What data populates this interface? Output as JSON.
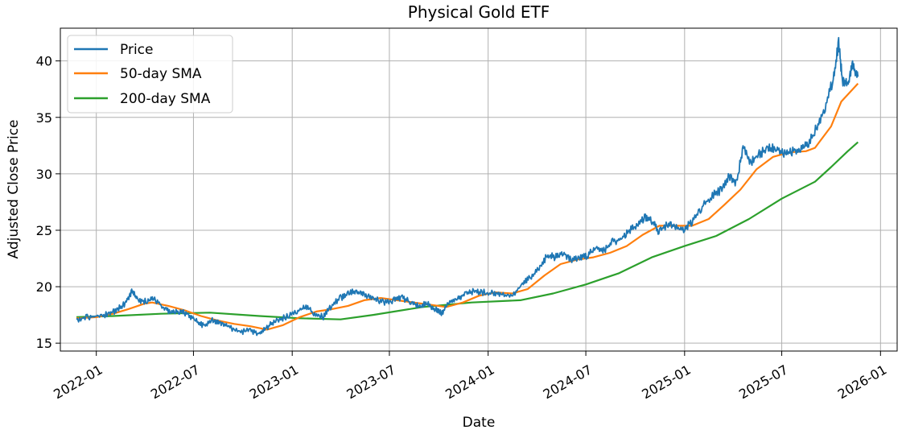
{
  "chart_data": {
    "type": "line",
    "title": "Physical Gold ETF",
    "xlabel": "Date",
    "ylabel": "Adjusted Close Price",
    "x_ticks": [
      "2022-01",
      "2022-07",
      "2023-01",
      "2023-07",
      "2024-01",
      "2024-07",
      "2025-01",
      "2025-07",
      "2026-01"
    ],
    "y_ticks": [
      15,
      20,
      25,
      30,
      35,
      40
    ],
    "xlim": [
      "2021-10-26",
      "2026-02-01"
    ],
    "ylim": [
      14.3,
      42.9
    ],
    "grid": true,
    "legend_position": "top-left",
    "series": [
      {
        "name": "Price",
        "color": "#1f77b4",
        "points": [
          [
            "2021-11-25",
            17.1
          ],
          [
            "2021-12-15",
            17.3
          ],
          [
            "2022-01-05",
            17.4
          ],
          [
            "2022-01-25",
            17.6
          ],
          [
            "2022-02-10",
            18.0
          ],
          [
            "2022-02-25",
            18.6
          ],
          [
            "2022-03-08",
            19.6
          ],
          [
            "2022-03-20",
            18.8
          ],
          [
            "2022-04-05",
            18.7
          ],
          [
            "2022-04-18",
            19.0
          ],
          [
            "2022-05-05",
            18.2
          ],
          [
            "2022-05-20",
            17.7
          ],
          [
            "2022-06-05",
            17.8
          ],
          [
            "2022-06-20",
            17.6
          ],
          [
            "2022-07-05",
            17.0
          ],
          [
            "2022-07-20",
            16.5
          ],
          [
            "2022-08-05",
            17.0
          ],
          [
            "2022-08-20",
            16.8
          ],
          [
            "2022-09-05",
            16.4
          ],
          [
            "2022-09-25",
            16.0
          ],
          [
            "2022-10-15",
            16.1
          ],
          [
            "2022-11-01",
            15.8
          ],
          [
            "2022-11-15",
            16.4
          ],
          [
            "2022-12-01",
            17.0
          ],
          [
            "2022-12-20",
            17.3
          ],
          [
            "2023-01-10",
            17.8
          ],
          [
            "2023-01-25",
            18.2
          ],
          [
            "2023-02-10",
            17.7
          ],
          [
            "2023-02-28",
            17.3
          ],
          [
            "2023-03-15",
            18.3
          ],
          [
            "2023-04-01",
            19.0
          ],
          [
            "2023-04-15",
            19.4
          ],
          [
            "2023-05-01",
            19.6
          ],
          [
            "2023-05-15",
            19.3
          ],
          [
            "2023-06-01",
            19.0
          ],
          [
            "2023-06-20",
            18.6
          ],
          [
            "2023-07-10",
            18.8
          ],
          [
            "2023-07-25",
            19.0
          ],
          [
            "2023-08-10",
            18.6
          ],
          [
            "2023-08-25",
            18.3
          ],
          [
            "2023-09-10",
            18.5
          ],
          [
            "2023-09-25",
            18.0
          ],
          [
            "2023-10-06",
            17.6
          ],
          [
            "2023-10-20",
            18.7
          ],
          [
            "2023-11-05",
            19.0
          ],
          [
            "2023-11-20",
            19.3
          ],
          [
            "2023-12-05",
            19.6
          ],
          [
            "2023-12-20",
            19.5
          ],
          [
            "2024-01-10",
            19.4
          ],
          [
            "2024-01-25",
            19.3
          ],
          [
            "2024-02-14",
            19.1
          ],
          [
            "2024-03-05",
            20.3
          ],
          [
            "2024-03-20",
            20.8
          ],
          [
            "2024-04-05",
            21.6
          ],
          [
            "2024-04-20",
            22.8
          ],
          [
            "2024-05-05",
            22.6
          ],
          [
            "2024-05-20",
            23.0
          ],
          [
            "2024-06-05",
            22.4
          ],
          [
            "2024-06-20",
            22.6
          ],
          [
            "2024-07-05",
            22.8
          ],
          [
            "2024-07-20",
            23.4
          ],
          [
            "2024-08-05",
            23.2
          ],
          [
            "2024-08-20",
            24.0
          ],
          [
            "2024-09-05",
            24.2
          ],
          [
            "2024-09-20",
            25.0
          ],
          [
            "2024-10-05",
            25.4
          ],
          [
            "2024-10-20",
            26.2
          ],
          [
            "2024-11-01",
            25.8
          ],
          [
            "2024-11-14",
            24.9
          ],
          [
            "2024-12-01",
            25.5
          ],
          [
            "2024-12-15",
            25.3
          ],
          [
            "2025-01-01",
            25.1
          ],
          [
            "2025-01-15",
            25.8
          ],
          [
            "2025-02-01",
            27.0
          ],
          [
            "2025-02-20",
            28.0
          ],
          [
            "2025-03-10",
            28.6
          ],
          [
            "2025-03-25",
            29.8
          ],
          [
            "2025-04-08",
            29.2
          ],
          [
            "2025-04-20",
            32.4
          ],
          [
            "2025-05-05",
            31.0
          ],
          [
            "2025-05-20",
            31.8
          ],
          [
            "2025-06-05",
            32.2
          ],
          [
            "2025-06-20",
            32.4
          ],
          [
            "2025-07-05",
            31.8
          ],
          [
            "2025-07-20",
            32.0
          ],
          [
            "2025-08-05",
            32.2
          ],
          [
            "2025-08-20",
            32.6
          ],
          [
            "2025-09-05",
            34.2
          ],
          [
            "2025-09-20",
            35.8
          ],
          [
            "2025-10-05",
            38.4
          ],
          [
            "2025-10-15",
            41.6
          ],
          [
            "2025-10-22",
            38.2
          ],
          [
            "2025-11-01",
            37.8
          ],
          [
            "2025-11-10",
            39.6
          ],
          [
            "2025-11-20",
            38.6
          ]
        ]
      },
      {
        "name": "50-day SMA",
        "color": "#ff7f0e",
        "points": [
          [
            "2021-11-25",
            17.2
          ],
          [
            "2022-01-01",
            17.3
          ],
          [
            "2022-02-01",
            17.6
          ],
          [
            "2022-03-01",
            18.0
          ],
          [
            "2022-04-01",
            18.5
          ],
          [
            "2022-04-15",
            18.6
          ],
          [
            "2022-05-15",
            18.3
          ],
          [
            "2022-06-15",
            17.9
          ],
          [
            "2022-07-15",
            17.4
          ],
          [
            "2022-08-15",
            17.0
          ],
          [
            "2022-09-15",
            16.7
          ],
          [
            "2022-10-15",
            16.5
          ],
          [
            "2022-11-15",
            16.2
          ],
          [
            "2022-12-15",
            16.6
          ],
          [
            "2023-01-15",
            17.3
          ],
          [
            "2023-02-15",
            17.8
          ],
          [
            "2023-03-15",
            18.0
          ],
          [
            "2023-04-15",
            18.3
          ],
          [
            "2023-05-15",
            18.8
          ],
          [
            "2023-06-15",
            19.0
          ],
          [
            "2023-07-15",
            18.8
          ],
          [
            "2023-08-15",
            18.6
          ],
          [
            "2023-09-15",
            18.4
          ],
          [
            "2023-10-15",
            18.2
          ],
          [
            "2023-11-15",
            18.6
          ],
          [
            "2023-12-15",
            19.2
          ],
          [
            "2024-01-15",
            19.5
          ],
          [
            "2024-02-15",
            19.4
          ],
          [
            "2024-03-15",
            19.8
          ],
          [
            "2024-04-15",
            21.0
          ],
          [
            "2024-05-15",
            22.0
          ],
          [
            "2024-06-15",
            22.4
          ],
          [
            "2024-07-15",
            22.6
          ],
          [
            "2024-08-15",
            23.0
          ],
          [
            "2024-09-15",
            23.6
          ],
          [
            "2024-10-15",
            24.6
          ],
          [
            "2024-11-15",
            25.4
          ],
          [
            "2024-12-15",
            25.4
          ],
          [
            "2025-01-15",
            25.4
          ],
          [
            "2025-02-15",
            26.0
          ],
          [
            "2025-03-15",
            27.2
          ],
          [
            "2025-04-15",
            28.6
          ],
          [
            "2025-05-15",
            30.4
          ],
          [
            "2025-06-15",
            31.5
          ],
          [
            "2025-07-15",
            31.9
          ],
          [
            "2025-08-15",
            32.0
          ],
          [
            "2025-09-01",
            32.3
          ],
          [
            "2025-10-01",
            34.2
          ],
          [
            "2025-10-20",
            36.4
          ],
          [
            "2025-11-20",
            38.0
          ]
        ]
      },
      {
        "name": "200-day SMA",
        "color": "#2ca02c",
        "points": [
          [
            "2021-11-25",
            17.3
          ],
          [
            "2022-02-01",
            17.4
          ],
          [
            "2022-05-01",
            17.6
          ],
          [
            "2022-08-01",
            17.7
          ],
          [
            "2022-11-01",
            17.4
          ],
          [
            "2023-01-15",
            17.2
          ],
          [
            "2023-04-01",
            17.1
          ],
          [
            "2023-06-01",
            17.5
          ],
          [
            "2023-09-01",
            18.2
          ],
          [
            "2023-12-01",
            18.6
          ],
          [
            "2024-03-01",
            18.8
          ],
          [
            "2024-05-01",
            19.4
          ],
          [
            "2024-07-01",
            20.2
          ],
          [
            "2024-09-01",
            21.2
          ],
          [
            "2024-11-01",
            22.6
          ],
          [
            "2025-01-01",
            23.6
          ],
          [
            "2025-03-01",
            24.5
          ],
          [
            "2025-05-01",
            26.0
          ],
          [
            "2025-07-01",
            27.8
          ],
          [
            "2025-09-01",
            29.3
          ],
          [
            "2025-10-01",
            30.6
          ],
          [
            "2025-11-01",
            32.0
          ],
          [
            "2025-11-20",
            32.8
          ]
        ]
      }
    ]
  }
}
